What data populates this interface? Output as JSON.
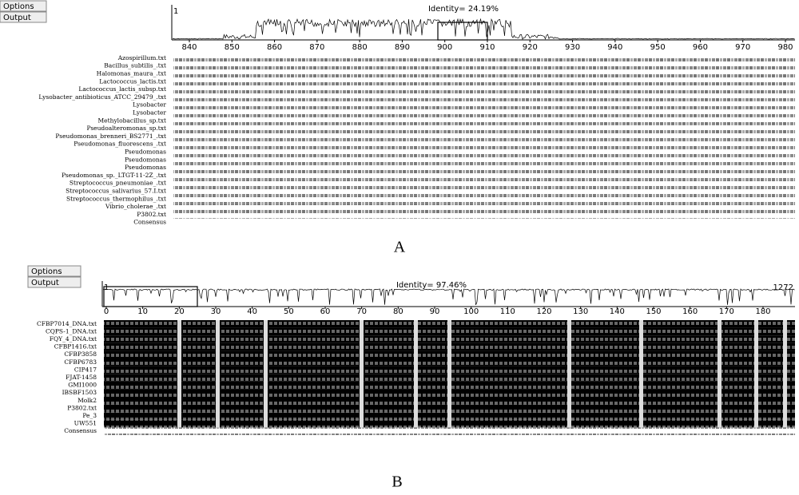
{
  "panel_a": {
    "label": "A",
    "buttons": [
      "Options",
      "Output"
    ],
    "start": "1",
    "identity": "Identity= 24.19%",
    "ruler_ticks": [
      840,
      850,
      860,
      870,
      880,
      890,
      900,
      910,
      920,
      930,
      940,
      950,
      960,
      970,
      980
    ],
    "names": [
      "Azospirillum.txt",
      "Bacillus_subtilis_.txt",
      "Halomonas_maura_.txt",
      "Lactococcus_lactis.txt",
      "Lactococcus_lactis_subsp.txt",
      "Lysobacter_antibioticus_ATCC_29479_.txt",
      "Lysobacter",
      "Lysobacter",
      "Methylobacillus_sp.txt",
      "Pseudoalteromonas_sp.txt",
      "Pseudomonas_brenneri_BS2771_.txt",
      "Pseudomonas_fluorescens_.txt",
      "Pseudomonas",
      "Pseudomonas",
      "Pseudomonas",
      "Pseudomonas_sp._LTGT-11-2Z_.txt",
      "Streptococcus_pneumoniae_.txt",
      "Streptococcus_salivarius_57.I.txt",
      "Streptococcus_thermophilus_.txt",
      "Vibrio_cholerae_.txt",
      "P3802.txt",
      "Consensus"
    ]
  },
  "panel_b": {
    "label": "B",
    "buttons": [
      "Options",
      "Output"
    ],
    "start": "1",
    "end": "1272",
    "identity": "Identity= 97.46%",
    "ruler_ticks": [
      0,
      10,
      20,
      30,
      40,
      50,
      60,
      70,
      80,
      90,
      100,
      110,
      120,
      130,
      140,
      150,
      160,
      170,
      180
    ],
    "names": [
      "CFBP7014_DNA.txt",
      "CQPS-1_DNA.txt",
      "FQY_4_DNA.txt",
      "CFBP1416.txt",
      "CFBP3858",
      "CFBP6783",
      "CIP417",
      "FJAT-1458",
      "GMI1000",
      "IBSBF1503",
      "Molk2",
      "P3802.txt",
      "Pe_3",
      "UW551",
      "Consensus"
    ]
  }
}
